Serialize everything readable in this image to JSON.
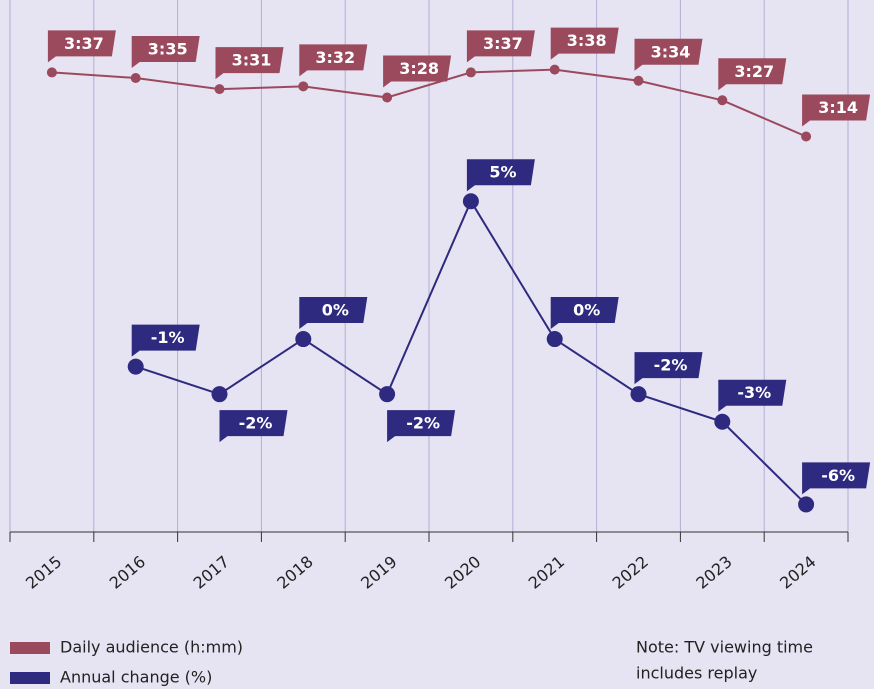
{
  "chart_data": {
    "type": "line",
    "categories": [
      "2015",
      "2016",
      "2017",
      "2018",
      "2019",
      "2020",
      "2021",
      "2022",
      "2023",
      "2024"
    ],
    "series": [
      {
        "name": "Daily audience (h:mm)",
        "color": "#9b4a5e",
        "values": [
          217,
          215,
          211,
          212,
          208,
          217,
          218,
          214,
          207,
          194
        ],
        "value_labels": [
          "3:37",
          "3:35",
          "3:31",
          "3:32",
          "3:28",
          "3:37",
          "3:38",
          "3:34",
          "3:27",
          "3:14"
        ]
      },
      {
        "name": "Annual change (%)",
        "color": "#2d2a7f",
        "axis": "y2",
        "values": [
          null,
          -1,
          -2,
          0,
          -2,
          5,
          0,
          -2,
          -3,
          -6
        ],
        "value_labels": [
          null,
          "-1%",
          "-2%",
          "0%",
          "-2%",
          "5%",
          "0%",
          "-2%",
          "-3%",
          "-6%"
        ]
      }
    ],
    "ylim": [
      52,
      243
    ],
    "y2lim": [
      -7,
      12.3
    ],
    "grid": true,
    "note": [
      "Note: TV viewing time",
      "includes replay"
    ]
  }
}
